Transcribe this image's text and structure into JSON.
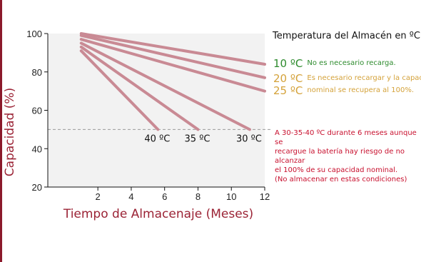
{
  "colors": {
    "line": "#c98a94",
    "axis_title": "#9b2335",
    "green": "#2e8b2e",
    "gold": "#d4a23a",
    "red_note": "#c8102e",
    "plot_bg": "#f2f2f2",
    "threshold": "#9a9a9a"
  },
  "legend": {
    "title": "Temperatura del Almacén en ºC",
    "items": [
      {
        "temp": "10 ºC",
        "note": "No es necesario recarga."
      },
      {
        "temp": "20 ºC",
        "note": "Es necesario recargar y la capacidad"
      },
      {
        "temp": "25 ºC",
        "note": "nominal se recupera al 100%."
      }
    ]
  },
  "note": {
    "lines": [
      "A 30-35-40 ºC durante 6 meses aunque se",
      "recargue la batería hay riesgo de no alcanzar",
      "el 100% de su capacidad nominal.",
      "(No almacenar en estas condiciones)"
    ]
  },
  "chart_data": {
    "type": "line",
    "xlabel": "Tiempo de Almacenaje (Meses)",
    "ylabel": "Capacidad (%)",
    "xlim": [
      -1,
      12
    ],
    "ylim": [
      20,
      100
    ],
    "xticks": [
      2,
      4,
      6,
      8,
      10,
      12
    ],
    "yticks": [
      20,
      40,
      60,
      80,
      100
    ],
    "threshold": 50,
    "series": [
      {
        "name": "10 ºC",
        "x": [
          1,
          12
        ],
        "y": [
          100,
          84
        ]
      },
      {
        "name": "20 ºC",
        "x": [
          1,
          12
        ],
        "y": [
          99,
          77
        ]
      },
      {
        "name": "25 ºC",
        "x": [
          1,
          12
        ],
        "y": [
          97,
          70
        ]
      },
      {
        "name": "30 ºC",
        "x": [
          1,
          11.1
        ],
        "y": [
          95,
          50
        ]
      },
      {
        "name": "35 ºC",
        "x": [
          1,
          8
        ],
        "y": [
          93,
          50
        ]
      },
      {
        "name": "40 ºC",
        "x": [
          1,
          5.6
        ],
        "y": [
          91,
          50
        ]
      }
    ],
    "line_labels": [
      "40 ºC",
      "35 ºC",
      "30 ºC"
    ]
  }
}
